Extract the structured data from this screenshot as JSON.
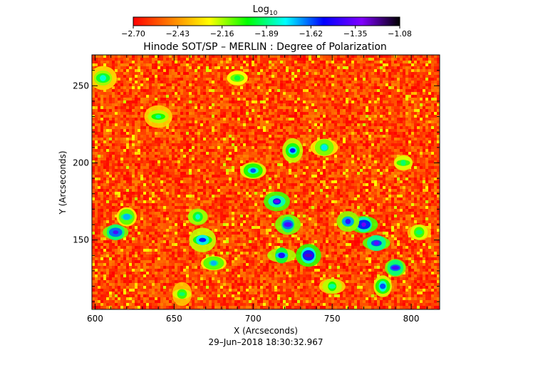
{
  "chart_data": {
    "type": "heatmap",
    "title": "Hinode SOT/SP – MERLIN : Degree of Polarization",
    "xlabel": "X (Arcseconds)",
    "ylabel": "Y (Arcseconds)",
    "timestamp": "29–Jun–2018 18:30:32.967",
    "colorbar": {
      "label": "Log",
      "label_subscript": "10",
      "ticks": [
        "−2.70",
        "−2.43",
        "−2.16",
        "−1.89",
        "−1.62",
        "−1.35",
        "−1.08"
      ],
      "min": -2.7,
      "max": -1.08,
      "colormap": [
        "#ff0000",
        "#ff8000",
        "#ffff00",
        "#00ff00",
        "#00ffff",
        "#0000ff",
        "#8000ff",
        "#000000"
      ]
    },
    "xlim": [
      598,
      818
    ],
    "ylim": [
      105,
      270
    ],
    "xticks": [
      600,
      650,
      700,
      750,
      800
    ],
    "yticks": [
      150,
      200,
      250
    ],
    "grid": false,
    "features": [
      {
        "x": 715,
        "y": 175,
        "value": -1.3
      },
      {
        "x": 722,
        "y": 160,
        "value": -1.4
      },
      {
        "x": 735,
        "y": 140,
        "value": -1.25
      },
      {
        "x": 718,
        "y": 140,
        "value": -1.5
      },
      {
        "x": 725,
        "y": 208,
        "value": -1.55
      },
      {
        "x": 700,
        "y": 195,
        "value": -1.6
      },
      {
        "x": 770,
        "y": 160,
        "value": -1.3
      },
      {
        "x": 778,
        "y": 148,
        "value": -1.35
      },
      {
        "x": 760,
        "y": 162,
        "value": -1.45
      },
      {
        "x": 790,
        "y": 132,
        "value": -1.4
      },
      {
        "x": 782,
        "y": 120,
        "value": -1.6
      },
      {
        "x": 613,
        "y": 155,
        "value": -1.4
      },
      {
        "x": 620,
        "y": 165,
        "value": -1.7
      },
      {
        "x": 668,
        "y": 150,
        "value": -1.55
      },
      {
        "x": 675,
        "y": 135,
        "value": -1.7
      },
      {
        "x": 665,
        "y": 165,
        "value": -1.8
      },
      {
        "x": 640,
        "y": 230,
        "value": -1.85
      },
      {
        "x": 605,
        "y": 255,
        "value": -1.8
      },
      {
        "x": 745,
        "y": 210,
        "value": -1.75
      },
      {
        "x": 795,
        "y": 200,
        "value": -1.9
      },
      {
        "x": 750,
        "y": 120,
        "value": -1.85
      },
      {
        "x": 655,
        "y": 115,
        "value": -1.9
      },
      {
        "x": 805,
        "y": 155,
        "value": -1.9
      },
      {
        "x": 690,
        "y": 255,
        "value": -1.95
      }
    ]
  }
}
